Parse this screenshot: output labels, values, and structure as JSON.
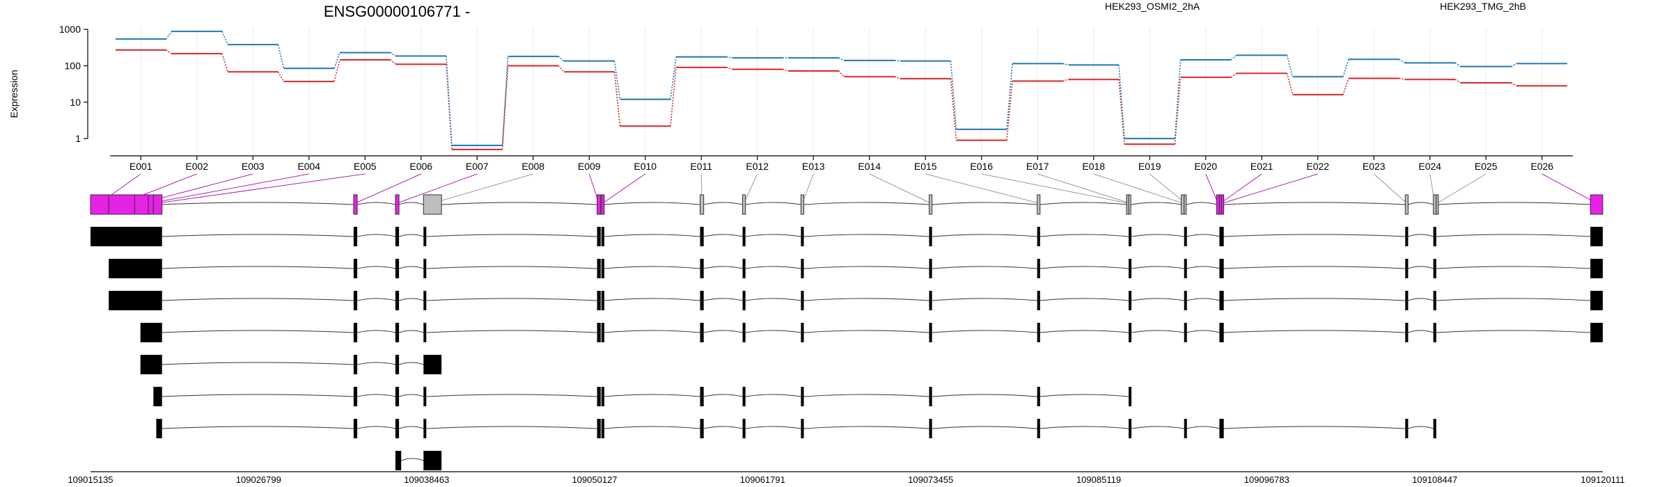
{
  "chart_data": {
    "type": "line",
    "title": "ENSG00000106771 -",
    "ylabel": "Expression",
    "xlabel": "",
    "y_scale": "log",
    "yticks": [
      "1",
      "10",
      "100",
      "1000"
    ],
    "ylim": [
      0.4,
      1100
    ],
    "grid": true,
    "legend_placement": "top-right",
    "categories": [
      "E001",
      "E002",
      "E003",
      "E004",
      "E005",
      "E006",
      "E007",
      "E008",
      "E009",
      "E010",
      "E011",
      "E012",
      "E013",
      "E014",
      "E015",
      "E016",
      "E017",
      "E018",
      "E019",
      "E020",
      "E021",
      "E022",
      "E023",
      "E024",
      "E025",
      "E026"
    ],
    "series": [
      {
        "name": "HEK293_OSMI2_2hA",
        "color": "#d62728",
        "values": [
          270,
          215,
          68,
          37,
          145,
          110,
          0.5,
          100,
          68,
          2.2,
          90,
          80,
          72,
          50,
          44,
          0.9,
          38,
          42,
          0.7,
          48,
          62,
          16,
          45,
          42,
          34,
          28
        ]
      },
      {
        "name": "HEK293_TMG_2hB",
        "color": "#1f77b4",
        "values": [
          540,
          880,
          380,
          85,
          230,
          185,
          0.65,
          180,
          135,
          12,
          175,
          165,
          165,
          140,
          135,
          1.8,
          115,
          105,
          1.0,
          145,
          195,
          50,
          150,
          120,
          95,
          115
        ]
      }
    ],
    "genomic_axis": {
      "range": [
        109015135,
        109120111
      ],
      "ticks": [
        "109015135",
        "109026799",
        "109038463",
        "109050127",
        "109061791",
        "109073455",
        "109085119",
        "109096783",
        "109108447",
        "109120111"
      ]
    },
    "exons": [
      {
        "id": "E001",
        "start": 109015135,
        "end": 109016400,
        "highlight": true
      },
      {
        "id": "E002",
        "start": 109016400,
        "end": 109018200,
        "highlight": true
      },
      {
        "id": "E003",
        "start": 109018200,
        "end": 109019150,
        "highlight": true
      },
      {
        "id": "E004",
        "start": 109019150,
        "end": 109019500,
        "highlight": true
      },
      {
        "id": "E005",
        "start": 109019500,
        "end": 109020100,
        "highlight": true
      },
      {
        "id": "E006",
        "start": 109033400,
        "end": 109033650,
        "highlight": true
      },
      {
        "id": "E007",
        "start": 109036300,
        "end": 109036550,
        "highlight": true
      },
      {
        "id": "E008",
        "start": 109038250,
        "end": 109039500,
        "highlight": false
      },
      {
        "id": "E009",
        "start": 109050300,
        "end": 109050550,
        "highlight": true
      },
      {
        "id": "E010",
        "start": 109050600,
        "end": 109050800,
        "highlight": true
      },
      {
        "id": "E011",
        "start": 109057450,
        "end": 109057700,
        "highlight": false
      },
      {
        "id": "E012",
        "start": 109060400,
        "end": 109060600,
        "highlight": false
      },
      {
        "id": "E013",
        "start": 109064450,
        "end": 109064650,
        "highlight": false
      },
      {
        "id": "E014",
        "start": 109073350,
        "end": 109073550,
        "highlight": false
      },
      {
        "id": "E015",
        "start": 109080850,
        "end": 109081050,
        "highlight": false
      },
      {
        "id": "E016",
        "start": 109087050,
        "end": 109087200,
        "highlight": false
      },
      {
        "id": "E017",
        "start": 109087200,
        "end": 109087350,
        "highlight": false
      },
      {
        "id": "E018",
        "start": 109090850,
        "end": 109091050,
        "highlight": false
      },
      {
        "id": "E019",
        "start": 109091050,
        "end": 109091200,
        "highlight": false
      },
      {
        "id": "E020",
        "start": 109093300,
        "end": 109093500,
        "highlight": true
      },
      {
        "id": "E021",
        "start": 109093500,
        "end": 109093650,
        "highlight": true
      },
      {
        "id": "E022",
        "start": 109093650,
        "end": 109093800,
        "highlight": true
      },
      {
        "id": "E023",
        "start": 109106400,
        "end": 109106600,
        "highlight": false
      },
      {
        "id": "E024",
        "start": 109108350,
        "end": 109108550,
        "highlight": false
      },
      {
        "id": "E025",
        "start": 109108550,
        "end": 109108700,
        "highlight": false
      },
      {
        "id": "E026",
        "start": 109119250,
        "end": 109120111,
        "highlight": true
      }
    ],
    "transcripts": [
      {
        "exons": [
          [
            109015135,
            109020100
          ],
          [
            109033400,
            109033650
          ],
          [
            109036300,
            109036550
          ],
          [
            109038250,
            109038400
          ],
          [
            109050300,
            109050550
          ],
          [
            109050600,
            109050800
          ],
          [
            109057450,
            109057700
          ],
          [
            109060400,
            109060600
          ],
          [
            109064450,
            109064650
          ],
          [
            109073350,
            109073550
          ],
          [
            109080850,
            109081050
          ],
          [
            109087200,
            109087350
          ],
          [
            109091050,
            109091200
          ],
          [
            109093500,
            109093800
          ],
          [
            109106400,
            109106600
          ],
          [
            109108350,
            109108550
          ],
          [
            109119250,
            109120111
          ]
        ]
      },
      {
        "exons": [
          [
            109016400,
            109020100
          ],
          [
            109033400,
            109033650
          ],
          [
            109036300,
            109036550
          ],
          [
            109038250,
            109038400
          ],
          [
            109050300,
            109050550
          ],
          [
            109050600,
            109050800
          ],
          [
            109057450,
            109057700
          ],
          [
            109060400,
            109060600
          ],
          [
            109064450,
            109064650
          ],
          [
            109073350,
            109073550
          ],
          [
            109080850,
            109081050
          ],
          [
            109087200,
            109087350
          ],
          [
            109091050,
            109091200
          ],
          [
            109093500,
            109093800
          ],
          [
            109106400,
            109106600
          ],
          [
            109108350,
            109108550
          ],
          [
            109119250,
            109120111
          ]
        ]
      },
      {
        "exons": [
          [
            109016400,
            109020100
          ],
          [
            109033400,
            109033650
          ],
          [
            109036300,
            109036550
          ],
          [
            109038250,
            109038400
          ],
          [
            109050300,
            109050550
          ],
          [
            109050600,
            109050800
          ],
          [
            109057450,
            109057700
          ],
          [
            109060400,
            109060600
          ],
          [
            109064450,
            109064650
          ],
          [
            109073350,
            109073550
          ],
          [
            109080850,
            109081050
          ],
          [
            109087200,
            109087350
          ],
          [
            109091050,
            109091200
          ],
          [
            109093500,
            109093800
          ],
          [
            109106400,
            109106600
          ],
          [
            109108350,
            109108550
          ],
          [
            109119250,
            109120111
          ]
        ]
      },
      {
        "exons": [
          [
            109018600,
            109020100
          ],
          [
            109033400,
            109033650
          ],
          [
            109036300,
            109036550
          ],
          [
            109038250,
            109038400
          ],
          [
            109050300,
            109050550
          ],
          [
            109050600,
            109050800
          ],
          [
            109057450,
            109057700
          ],
          [
            109060400,
            109060600
          ],
          [
            109064450,
            109064650
          ],
          [
            109073350,
            109073550
          ],
          [
            109080850,
            109081050
          ],
          [
            109087200,
            109087350
          ],
          [
            109091050,
            109091200
          ],
          [
            109093500,
            109093800
          ],
          [
            109106400,
            109106600
          ],
          [
            109108350,
            109108550
          ],
          [
            109119250,
            109120111
          ]
        ]
      },
      {
        "exons": [
          [
            109018600,
            109020100
          ],
          [
            109033400,
            109033650
          ],
          [
            109036300,
            109036550
          ],
          [
            109038250,
            109039500
          ]
        ]
      },
      {
        "exons": [
          [
            109019500,
            109020100
          ],
          [
            109033400,
            109033650
          ],
          [
            109036300,
            109036550
          ],
          [
            109038250,
            109038400
          ],
          [
            109050300,
            109050550
          ],
          [
            109050600,
            109050800
          ],
          [
            109057450,
            109057700
          ],
          [
            109060400,
            109060600
          ],
          [
            109064450,
            109064650
          ],
          [
            109073350,
            109073550
          ],
          [
            109080850,
            109081050
          ],
          [
            109087200,
            109087350
          ]
        ]
      },
      {
        "exons": [
          [
            109019700,
            109020100
          ],
          [
            109033400,
            109033650
          ],
          [
            109036300,
            109036550
          ],
          [
            109038250,
            109038400
          ],
          [
            109050300,
            109050550
          ],
          [
            109050600,
            109050800
          ],
          [
            109057450,
            109057700
          ],
          [
            109060400,
            109060600
          ],
          [
            109064450,
            109064650
          ],
          [
            109073350,
            109073550
          ],
          [
            109080850,
            109081050
          ],
          [
            109087200,
            109087350
          ],
          [
            109091050,
            109091200
          ],
          [
            109093500,
            109093800
          ],
          [
            109106400,
            109106600
          ],
          [
            109108350,
            109108550
          ]
        ]
      },
      {
        "exons": [
          [
            109036300,
            109036700
          ],
          [
            109038250,
            109039500
          ]
        ]
      }
    ]
  }
}
